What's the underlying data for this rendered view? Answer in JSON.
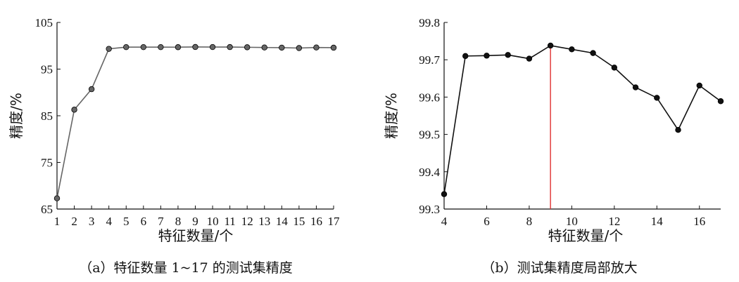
{
  "chart_data": [
    {
      "type": "line",
      "caption": "（a）特征数量 1~17 的测试集精度",
      "xlabel": "特征数量/个",
      "ylabel": "精度/%",
      "xlim": [
        1,
        17
      ],
      "ylim": [
        65,
        105
      ],
      "xticks": [
        1,
        2,
        3,
        4,
        5,
        6,
        7,
        8,
        9,
        10,
        11,
        12,
        13,
        14,
        15,
        16,
        17
      ],
      "yticks": [
        65,
        75,
        85,
        95,
        105
      ],
      "series": [
        {
          "x": [
            1,
            2,
            3,
            4,
            5,
            6,
            7,
            8,
            9,
            10,
            11,
            12,
            13,
            14,
            15,
            16,
            17
          ],
          "values": [
            67.3,
            86.3,
            90.7,
            99.34,
            99.71,
            99.71,
            99.71,
            99.7,
            99.74,
            99.73,
            99.72,
            99.68,
            99.63,
            99.6,
            99.51,
            99.63,
            99.59
          ],
          "color": "#666666"
        }
      ]
    },
    {
      "type": "line",
      "caption": "（b）测试集精度局部放大",
      "xlabel": "特征数量/个",
      "ylabel": "精度/%",
      "xlim": [
        4,
        17
      ],
      "ylim": [
        99.3,
        99.8
      ],
      "xticks": [
        4,
        6,
        8,
        10,
        12,
        14,
        16
      ],
      "yticks": [
        99.3,
        99.4,
        99.5,
        99.6,
        99.7,
        99.8
      ],
      "series": [
        {
          "x": [
            4,
            5,
            6,
            7,
            8,
            9,
            10,
            11,
            12,
            13,
            14,
            15,
            16,
            17
          ],
          "values": [
            99.34,
            99.71,
            99.711,
            99.713,
            99.703,
            99.738,
            99.728,
            99.718,
            99.679,
            99.626,
            99.598,
            99.512,
            99.631,
            99.589
          ],
          "color": "#111111"
        }
      ],
      "marker_line": {
        "x": 9,
        "color": "#e03030"
      }
    }
  ]
}
